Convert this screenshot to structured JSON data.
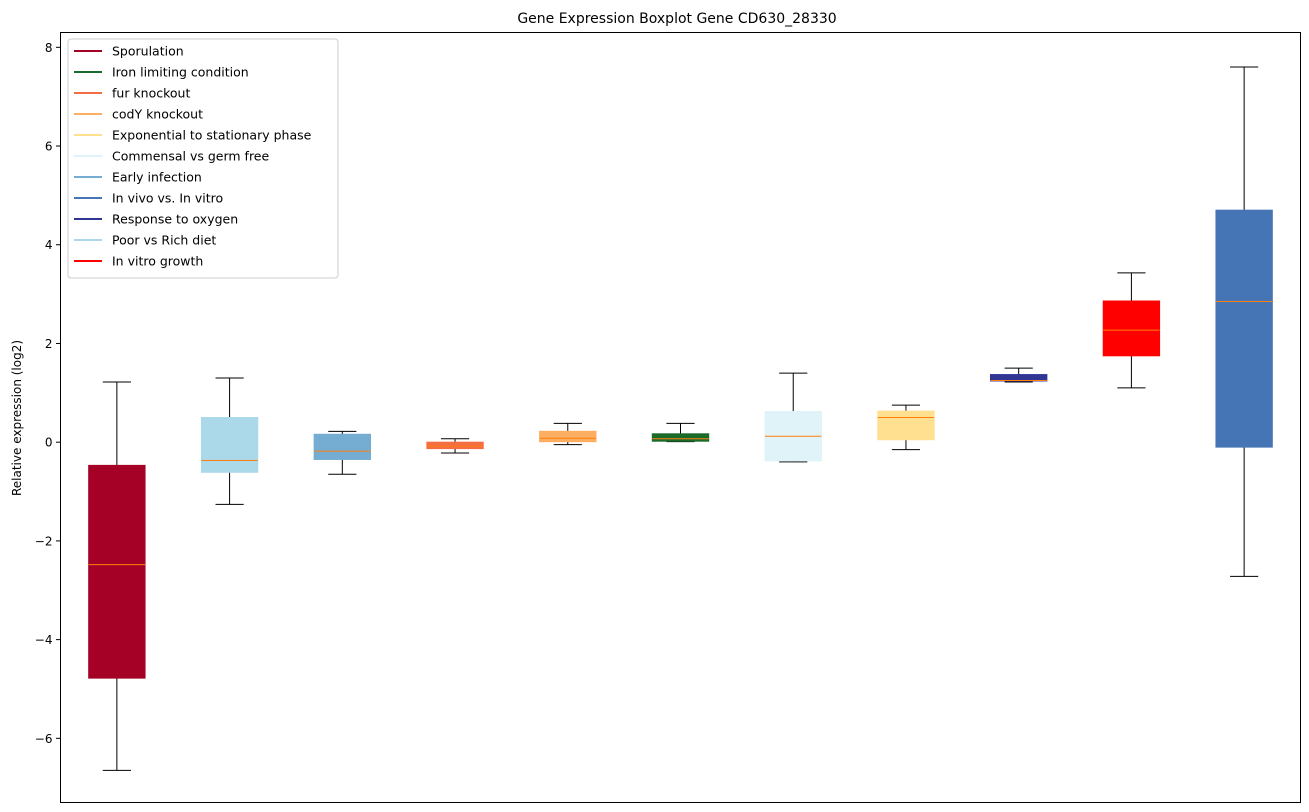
{
  "chart_data": {
    "type": "box",
    "title": "Gene Expression Boxplot Gene CD630_28330",
    "xlabel": "",
    "ylabel": "Relative expression (log2)",
    "ylim": [
      -7.3,
      8.3
    ],
    "yticks": [
      -6,
      -4,
      -2,
      0,
      2,
      4,
      6,
      8
    ],
    "ytick_labels": [
      "−6",
      "−4",
      "−2",
      "0",
      "2",
      "4",
      "6",
      "8"
    ],
    "grid": false,
    "legend_position": "upper-left",
    "median_color": "#ff7f0e",
    "legend": [
      {
        "label": "Sporulation",
        "color": "#a50026"
      },
      {
        "label": "Iron limiting condition",
        "color": "#1a6b2a"
      },
      {
        "label": "fur knockout",
        "color": "#f46d43"
      },
      {
        "label": "codY knockout",
        "color": "#fdae61"
      },
      {
        "label": "Exponential to stationary phase",
        "color": "#fee090"
      },
      {
        "label": "Commensal vs germ free",
        "color": "#e0f3f8"
      },
      {
        "label": "Early infection",
        "color": "#74add1"
      },
      {
        "label": "In vivo vs. In vitro",
        "color": "#4575b4"
      },
      {
        "label": "Response to oxygen",
        "color": "#313695"
      },
      {
        "label": "Poor vs Rich diet",
        "color": "#abd9e9"
      },
      {
        "label": "In vitro growth",
        "color": "#ff0000"
      }
    ],
    "boxes": [
      {
        "series": "Sporulation",
        "color": "#a50026",
        "whislo": -6.65,
        "q1": -4.78,
        "med": -2.48,
        "q3": -0.47,
        "whishi": 1.22
      },
      {
        "series": "Poor vs Rich diet",
        "color": "#abd9e9",
        "whislo": -1.26,
        "q1": -0.61,
        "med": -0.37,
        "q3": 0.5,
        "whishi": 1.3
      },
      {
        "series": "Early infection",
        "color": "#74add1",
        "whislo": -0.65,
        "q1": -0.35,
        "med": -0.18,
        "q3": 0.16,
        "whishi": 0.22
      },
      {
        "series": "fur knockout",
        "color": "#f46d43",
        "whislo": -0.22,
        "q1": -0.13,
        "med": -0.08,
        "q3": 0.0,
        "whishi": 0.07
      },
      {
        "series": "codY knockout",
        "color": "#fdae61",
        "whislo": -0.05,
        "q1": 0.01,
        "med": 0.08,
        "q3": 0.22,
        "whishi": 0.38
      },
      {
        "series": "Iron limiting condition",
        "color": "#1a6b2a",
        "whislo": 0.01,
        "q1": 0.02,
        "med": 0.07,
        "q3": 0.17,
        "whishi": 0.38
      },
      {
        "series": "Commensal vs germ free",
        "color": "#e0f3f8",
        "whislo": -0.4,
        "q1": -0.38,
        "med": 0.12,
        "q3": 0.62,
        "whishi": 1.4
      },
      {
        "series": "Exponential to stationary phase",
        "color": "#fee090",
        "whislo": -0.15,
        "q1": 0.05,
        "med": 0.5,
        "q3": 0.63,
        "whishi": 0.75
      },
      {
        "series": "Response to oxygen",
        "color": "#313695",
        "whislo": 1.22,
        "q1": 1.24,
        "med": 1.25,
        "q3": 1.37,
        "whishi": 1.5
      },
      {
        "series": "In vitro growth",
        "color": "#ff0000",
        "whislo": 1.1,
        "q1": 1.75,
        "med": 2.27,
        "q3": 2.86,
        "whishi": 3.43
      },
      {
        "series": "In vivo vs. In vitro",
        "color": "#4575b4",
        "whislo": -2.72,
        "q1": -0.1,
        "med": 2.85,
        "q3": 4.7,
        "whishi": 7.6
      }
    ]
  }
}
